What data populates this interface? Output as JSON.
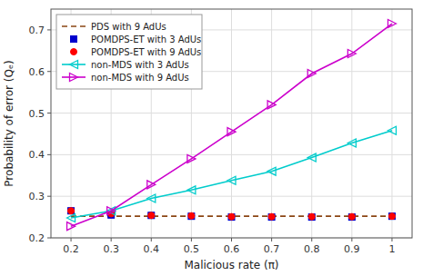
{
  "chart_data": {
    "type": "line",
    "xlabel": "Malicious rate (π)",
    "ylabel": "Probability of error (Qₑ)",
    "x": [
      0.2,
      0.3,
      0.4,
      0.5,
      0.6,
      0.7,
      0.8,
      0.9,
      1.0
    ],
    "series": [
      {
        "name": "PDS with 9 AdUs",
        "color": "#8B4513",
        "line_style": "dashed",
        "marker": "none",
        "values": [
          0.252,
          0.252,
          0.252,
          0.252,
          0.252,
          0.252,
          0.252,
          0.252,
          0.252
        ]
      },
      {
        "name": "POMDPS-ET with 3 AdUs",
        "color": "#0000CD",
        "line_style": "none",
        "marker": "square",
        "values": [
          0.265,
          0.255,
          0.254,
          0.252,
          0.25,
          0.25,
          0.25,
          0.25,
          0.252
        ]
      },
      {
        "name": "POMDPS-ET with 9 AdUs",
        "color": "#FF0000",
        "line_style": "none",
        "marker": "circle",
        "values": [
          0.265,
          0.258,
          0.254,
          0.253,
          0.251,
          0.251,
          0.251,
          0.251,
          0.252
        ]
      },
      {
        "name": "non-MDS with 3 AdUs",
        "color": "#00CCCC",
        "line_style": "solid",
        "marker": "triangle-left",
        "values": [
          0.248,
          0.265,
          0.295,
          0.315,
          0.338,
          0.36,
          0.393,
          0.428,
          0.458
        ]
      },
      {
        "name": "non-MDS with 9 AdUs",
        "color": "#CC00CC",
        "line_style": "solid",
        "marker": "triangle-right",
        "values": [
          0.228,
          0.265,
          0.328,
          0.39,
          0.455,
          0.52,
          0.595,
          0.643,
          0.715
        ]
      }
    ],
    "xlim": [
      0.15,
      1.05
    ],
    "ylim": [
      0.2,
      0.75
    ],
    "xticks": [
      0.2,
      0.3,
      0.4,
      0.5,
      0.6,
      0.7,
      0.8,
      0.9,
      1
    ],
    "yticks": [
      0.2,
      0.3,
      0.4,
      0.5,
      0.6,
      0.7
    ],
    "grid": true,
    "legend": "upper left"
  }
}
